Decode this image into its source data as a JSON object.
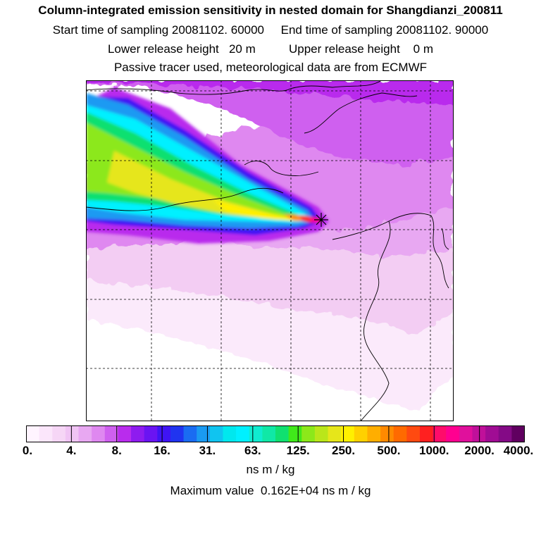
{
  "header": {
    "title": "Column-integrated emission sensitivity in nested domain for Shangdianzi_200811",
    "sampling": "Start time of sampling 20081102. 60000     End time of sampling 20081102. 90000",
    "release": "Lower release height   20 m          Upper release height    0 m",
    "tracer": "Passive tracer used, meteorological data are from ECMWF"
  },
  "colorbar": {
    "tick_labels": [
      "0.",
      "4.",
      "8.",
      "16.",
      "31.",
      "63.",
      "125.",
      "250.",
      "500.",
      "1000.",
      "2000.",
      "4000."
    ],
    "colors": [
      "#fff4ff",
      "#fbe6fb",
      "#f6d6f6",
      "#f0c4f4",
      "#e8a8f2",
      "#df88f0",
      "#cf60ef",
      "#b92ced",
      "#8e1cef",
      "#6a14f2",
      "#3f14f4",
      "#2034f0",
      "#1a6cf2",
      "#1a9af2",
      "#10c4f0",
      "#00e8ee",
      "#00f0ff",
      "#10ecd0",
      "#10e8a6",
      "#10e070",
      "#40e81a",
      "#8ce81a",
      "#bae61a",
      "#e6e61a",
      "#fff000",
      "#ffd000",
      "#ffae00",
      "#ff8a00",
      "#ff6a00",
      "#ff4a10",
      "#ff2020",
      "#ff0c6a",
      "#ff0090",
      "#e0109c",
      "#c0109a",
      "#a00c94",
      "#840a86",
      "#600060"
    ],
    "unit": "ns m / kg"
  },
  "footer": {
    "maximum": "Maximum value  0.162E+04 ns m / kg"
  },
  "map": {
    "receptor_marker": "star-marker"
  }
}
